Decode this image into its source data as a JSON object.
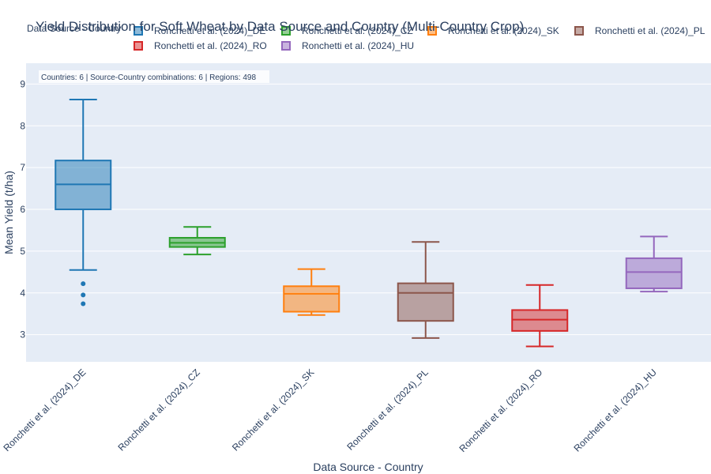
{
  "chart_data": {
    "type": "box",
    "title": "Yield Distribution for Soft Wheat by Data Source and Country (Multi-Country Crop)",
    "xlabel": "Data Source - Country",
    "ylabel": "Mean Yield (t/ha)",
    "ylim": [
      2.35,
      9.5
    ],
    "yticks": [
      3,
      4,
      5,
      6,
      7,
      8,
      9
    ],
    "legend_title": "Data Source - Country",
    "legend_placement": "top",
    "grid": true,
    "annotation": "Countries: 6 | Source-Country combinations: 6 | Regions: 498",
    "categories": [
      "Ronchetti et al. (2024)_DE",
      "Ronchetti et al. (2024)_CZ",
      "Ronchetti et al. (2024)_SK",
      "Ronchetti et al. (2024)_PL",
      "Ronchetti et al. (2024)_RO",
      "Ronchetti et al. (2024)_HU"
    ],
    "series": [
      {
        "name": "Ronchetti et al. (2024)_DE",
        "color": "#1f77b4",
        "min": 4.55,
        "q1": 6.0,
        "median": 6.6,
        "q3": 7.17,
        "max": 8.63,
        "outliers": [
          4.22,
          3.95,
          3.74
        ]
      },
      {
        "name": "Ronchetti et al. (2024)_CZ",
        "color": "#2ca02c",
        "min": 4.92,
        "q1": 5.1,
        "median": 5.2,
        "q3": 5.32,
        "max": 5.58,
        "outliers": []
      },
      {
        "name": "Ronchetti et al. (2024)_SK",
        "color": "#ff7f0e",
        "min": 3.47,
        "q1": 3.55,
        "median": 3.98,
        "q3": 4.16,
        "max": 4.57,
        "outliers": []
      },
      {
        "name": "Ronchetti et al. (2024)_PL",
        "color": "#8c564b",
        "min": 2.92,
        "q1": 3.33,
        "median": 4.0,
        "q3": 4.23,
        "max": 5.22,
        "outliers": []
      },
      {
        "name": "Ronchetti et al. (2024)_RO",
        "color": "#d62728",
        "min": 2.72,
        "q1": 3.09,
        "median": 3.36,
        "q3": 3.59,
        "max": 4.19,
        "outliers": []
      },
      {
        "name": "Ronchetti et al. (2024)_HU",
        "color": "#9467bd",
        "min": 4.03,
        "q1": 4.11,
        "median": 4.5,
        "q3": 4.83,
        "max": 5.35,
        "outliers": []
      }
    ],
    "legend_order": [
      0,
      1,
      2,
      3,
      4,
      5
    ]
  }
}
